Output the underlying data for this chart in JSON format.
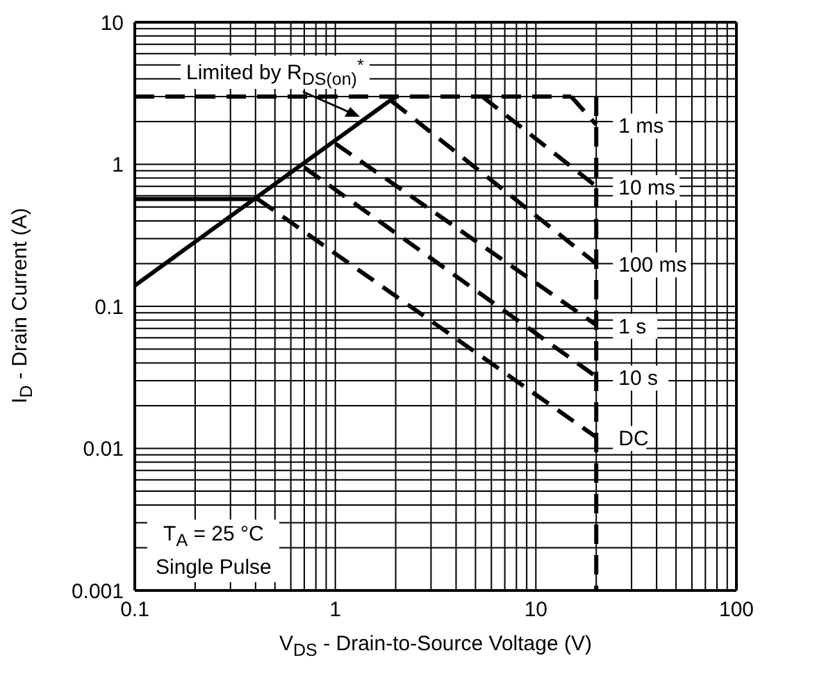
{
  "chart_data": {
    "type": "line",
    "xlabel": "V$_{DS}$ - Drain-to-Source Voltage (V)",
    "ylabel": "I$_{D}$ - Drain Current (A)",
    "log": "xy",
    "xlim": [
      0.1,
      100
    ],
    "ylim": [
      0.001,
      10
    ],
    "xticks": [
      0.1,
      1,
      10,
      100
    ],
    "yticks": [
      0.001,
      0.01,
      0.1,
      1,
      10
    ],
    "grid": true,
    "marker": "none",
    "annotations": [
      "Limited by R$_{DS(on)}$$^{*}$",
      "T$_{A}$ = 25 °C",
      "Single Pulse"
    ],
    "series": [
      {
        "color": "#000000",
        "line_style": "solid",
        "x": [
          0.1,
          2
        ],
        "values": [
          0.14,
          3
        ]
      },
      {
        "color": "#000000",
        "line_style": "dashed",
        "x": [
          0.1,
          15
        ],
        "values": [
          3,
          3
        ]
      },
      {
        "color": "#000000",
        "line_style": "solid",
        "x": [
          0.1,
          0.41
        ],
        "values": [
          0.57,
          0.57
        ]
      },
      {
        "name": "1 ms",
        "color": "#000000",
        "line_style": "dashed",
        "x": [
          15,
          20
        ],
        "values": [
          3,
          1.9
        ]
      },
      {
        "name": "10 ms",
        "color": "#000000",
        "line_style": "dashed",
        "x": [
          5.4,
          20
        ],
        "values": [
          3,
          0.7
        ]
      },
      {
        "name": "100 ms",
        "color": "#000000",
        "line_style": "dashed",
        "x": [
          1.9,
          20
        ],
        "values": [
          2.8,
          0.2
        ]
      },
      {
        "name": "1 s",
        "color": "#000000",
        "line_style": "dashed",
        "x": [
          1,
          20
        ],
        "values": [
          1.4,
          0.074
        ]
      },
      {
        "name": "10 s",
        "color": "#000000",
        "line_style": "dashed",
        "x": [
          0.7,
          20
        ],
        "values": [
          0.95,
          0.032
        ]
      },
      {
        "name": "DC",
        "color": "#000000",
        "line_style": "dashed",
        "x": [
          0.41,
          20
        ],
        "values": [
          0.57,
          0.012
        ]
      },
      {
        "color": "#000000",
        "line_style": "dashed",
        "x": [
          20,
          20
        ],
        "values": [
          3,
          0.001
        ]
      }
    ]
  }
}
